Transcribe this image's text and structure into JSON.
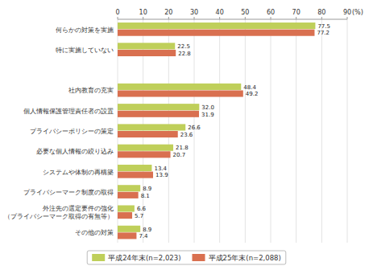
{
  "chart_data": {
    "type": "bar",
    "orientation": "horizontal",
    "xlabel": "(%)",
    "categories": [
      "何らかの対策を実施",
      "特に実施していない",
      null,
      "社内教育の充実",
      "個人情報保護管理責任者の設置",
      "プライバシーポリシーの策定",
      "必要な個人情報の絞り込み",
      "システムや体制の再構築",
      "プライバシーマーク制度の取得",
      "外注先の選定要件の強化\n（プライバシーマーク取得の有無等）",
      "その他の対策"
    ],
    "series": [
      {
        "name": "平成24年末(n=2,023)",
        "color": "#bfcf5a",
        "values": [
          77.5,
          22.5,
          null,
          48.4,
          32.0,
          26.6,
          21.8,
          13.4,
          8.9,
          6.6,
          8.9
        ],
        "value_labels": [
          "77.5",
          "22.5",
          null,
          "48.4",
          "32.0",
          "26.6",
          "21.8",
          "13.4",
          "8.9",
          "6.6",
          "8.9"
        ]
      },
      {
        "name": "平成25年末(n=2,088)",
        "color": "#d97050",
        "values": [
          77.2,
          22.8,
          null,
          49.2,
          31.9,
          23.6,
          20.7,
          13.9,
          8.1,
          5.7,
          7.4
        ],
        "value_labels": [
          "77.2",
          "22.8",
          null,
          "49.2",
          "31.9",
          "23.6",
          "20.7",
          "13.9",
          "8.1",
          "5.7",
          "7.4"
        ]
      }
    ],
    "xlim": [
      0,
      90
    ],
    "xticks": [
      0,
      10,
      20,
      30,
      40,
      50,
      60,
      70,
      80,
      90
    ],
    "grid": true,
    "data_labels": true,
    "legend": "bottom"
  }
}
